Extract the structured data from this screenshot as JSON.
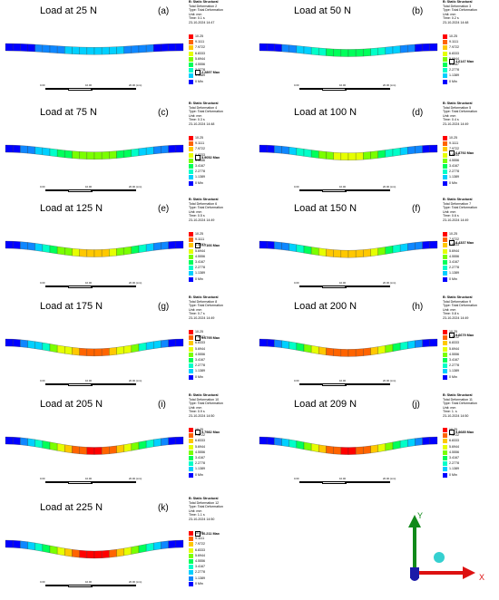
{
  "colors": [
    "#0000ff",
    "#0f87ff",
    "#00d0ff",
    "#00ffc8",
    "#00ff5a",
    "#7aff00",
    "#e6ff00",
    "#ffc800",
    "#ff6400",
    "#ff0000"
  ],
  "panels": [
    {
      "title": "Load at 25 N",
      "label": "(a)",
      "header": "B: Static Structural",
      "line1": "Total Deformation 2",
      "type": "Type: Total Deformation",
      "unit": "Unit: mm",
      "time": "Time: 0.1 s",
      "date": "23-10-2024 14:47",
      "legend": [
        {
          "v": "10.25"
        },
        {
          "v": "9.1111"
        },
        {
          "v": "7.9722"
        },
        {
          "v": "6.8333"
        },
        {
          "v": "5.6944"
        },
        {
          "v": "4.5556"
        },
        {
          "v": "2.2778"
        },
        {
          "v": "1.1389"
        },
        {
          "v": "0 Min"
        }
      ],
      "max_label": "2.2897 Max",
      "max_value": 2.2897,
      "scale": [
        "0.00",
        "10.00",
        "20.00 (mm)"
      ]
    },
    {
      "title": "Load at 50 N",
      "label": "(b)",
      "header": "B: Static Structural",
      "line1": "Total Deformation 3",
      "type": "Type: Total Deformation",
      "unit": "Unit: mm",
      "time": "Time: 0.2 s",
      "date": "23-10-2024 14:48",
      "legend": [
        {
          "v": "10.25"
        },
        {
          "v": "9.1111"
        },
        {
          "v": "7.9722"
        },
        {
          "v": "6.8333"
        },
        {
          "v": "5.6944"
        },
        {
          "v": "3.4167"
        },
        {
          "v": "2.2778"
        },
        {
          "v": "1.1389"
        },
        {
          "v": "0 Min"
        }
      ],
      "max_label": "4.6147 Max",
      "max_value": 4.6147,
      "scale": [
        "0.00",
        "10.00",
        "20.00 (mm)"
      ]
    },
    {
      "title": "Load at 75 N",
      "label": "(c)",
      "header": "B: Static Structural",
      "line1": "Total Deformation 4",
      "type": "Type: Total Deformation",
      "unit": "Unit: mm",
      "time": "Time: 0.3 s",
      "date": "23-10-2024 14:48",
      "legend": [
        {
          "v": "10.25"
        },
        {
          "v": "9.1111"
        },
        {
          "v": "7.9722"
        },
        {
          "v": "6.8333"
        },
        {
          "v": "4.5556"
        },
        {
          "v": "3.4167"
        },
        {
          "v": "2.2778"
        },
        {
          "v": "1.1389"
        },
        {
          "v": "0 Min"
        }
      ],
      "max_label": "5.9052 Max",
      "max_value": 5.9052,
      "scale": [
        "0.00",
        "10.00",
        "20.00 (mm)"
      ]
    },
    {
      "title": "Load at 100 N",
      "label": "(d)",
      "header": "B: Static Structural",
      "line1": "Total Deformation 5",
      "type": "Type: Total Deformation",
      "unit": "Unit: mm",
      "time": "Time: 0.4 s",
      "date": "23-10-2024 14:49",
      "legend": [
        {
          "v": "10.25"
        },
        {
          "v": "9.1111"
        },
        {
          "v": "7.9722"
        },
        {
          "v": "5.6944"
        },
        {
          "v": "4.5556"
        },
        {
          "v": "3.4167"
        },
        {
          "v": "2.2778"
        },
        {
          "v": "1.1389"
        },
        {
          "v": "0 Min"
        }
      ],
      "max_label": "6.8792 Max",
      "max_value": 6.8792,
      "scale": [
        "0.00",
        "10.00",
        "20.00 (mm)"
      ]
    },
    {
      "title": "Load at 125 N",
      "label": "(e)",
      "header": "B: Static Structural",
      "line1": "Total Deformation 6",
      "type": "Type: Total Deformation",
      "unit": "Unit: mm",
      "time": "Time: 0.5 s",
      "date": "23-10-2024 14:49",
      "legend": [
        {
          "v": "10.25"
        },
        {
          "v": "9.1111"
        },
        {
          "v": "6.8333"
        },
        {
          "v": "5.6944"
        },
        {
          "v": "4.5556"
        },
        {
          "v": "3.4167"
        },
        {
          "v": "2.2778"
        },
        {
          "v": "1.1389"
        },
        {
          "v": "0 Min"
        }
      ],
      "max_label": "7.7166 Max",
      "max_value": 7.7166,
      "scale": [
        "0.00",
        "10.00",
        "20.00 (mm)"
      ]
    },
    {
      "title": "Load at 150 N",
      "label": "(f)",
      "header": "B: Static Structural",
      "line1": "Total Deformation 7",
      "type": "Type: Total Deformation",
      "unit": "Unit: mm",
      "time": "Time: 0.6 s",
      "date": "23-10-2024 14:49",
      "legend": [
        {
          "v": "10.25"
        },
        {
          "v": "7.9722"
        },
        {
          "v": "6.8333"
        },
        {
          "v": "5.6944"
        },
        {
          "v": "4.5556"
        },
        {
          "v": "3.4167"
        },
        {
          "v": "2.2778"
        },
        {
          "v": "1.1389"
        },
        {
          "v": "0 Min"
        }
      ],
      "max_label": "8.4337 Max",
      "max_value": 8.4337,
      "scale": [
        "0.00",
        "10.00",
        "20.00 (mm)"
      ]
    },
    {
      "title": "Load at 175 N",
      "label": "(g)",
      "header": "B: Static Structural",
      "line1": "Total Deformation 8",
      "type": "Type: Total Deformation",
      "unit": "Unit: mm",
      "time": "Time: 0.7 s",
      "date": "23-10-2024 14:49",
      "legend": [
        {
          "v": "10.25"
        },
        {
          "v": "7.9722"
        },
        {
          "v": "6.8333"
        },
        {
          "v": "5.6944"
        },
        {
          "v": "4.5556"
        },
        {
          "v": "3.4167"
        },
        {
          "v": "2.2778"
        },
        {
          "v": "1.1389"
        },
        {
          "v": "0 Min"
        }
      ],
      "max_label": "9.0795 Max",
      "max_value": 9.0795,
      "scale": [
        "0.00",
        "10.00",
        "20.00 (mm)"
      ]
    },
    {
      "title": "Load at 200 N",
      "label": "(h)",
      "header": "B: Static Structural",
      "line1": "Total Deformation 9",
      "type": "Type: Total Deformation",
      "unit": "Unit: mm",
      "time": "Time: 0.8 s",
      "date": "23-10-2024 14:49",
      "legend": [
        {
          "v": "10.25"
        },
        {
          "v": "7.9722"
        },
        {
          "v": "6.8333"
        },
        {
          "v": "5.6944"
        },
        {
          "v": "4.5556"
        },
        {
          "v": "3.4167"
        },
        {
          "v": "2.2778"
        },
        {
          "v": "1.1389"
        },
        {
          "v": "0 Min"
        }
      ],
      "max_label": "9.6679 Max",
      "max_value": 9.6679,
      "scale": [
        "0.00",
        "10.00",
        "20.00 (mm)"
      ]
    },
    {
      "title": "Load at 205 N",
      "label": "(i)",
      "header": "B: Static Structural",
      "line1": "Total Deformation 10",
      "type": "Type: Total Deformation",
      "unit": "Unit: mm",
      "time": "Time: 0.9 s",
      "date": "23-10-2024 14:50",
      "legend": [
        {
          "v": "10.25"
        },
        {
          "v": "7.9722"
        },
        {
          "v": "6.8333"
        },
        {
          "v": "5.6944"
        },
        {
          "v": "4.5556"
        },
        {
          "v": "3.4167"
        },
        {
          "v": "2.2778"
        },
        {
          "v": "1.1389"
        },
        {
          "v": "0 Min"
        }
      ],
      "max_label": "9.7982 Max",
      "max_value": 9.7982,
      "scale": [
        "0.00",
        "10.00",
        "20.00 (mm)"
      ]
    },
    {
      "title": "Load at 209 N",
      "label": "(j)",
      "header": "B: Static Structural",
      "line1": "Total Deformation 11",
      "type": "Type: Total Deformation",
      "unit": "Unit: mm",
      "time": "Time: 1. s",
      "date": "23-10-2024 14:50",
      "legend": [
        {
          "v": "10.25"
        },
        {
          "v": "7.9722"
        },
        {
          "v": "6.8333"
        },
        {
          "v": "5.6944"
        },
        {
          "v": "4.5556"
        },
        {
          "v": "3.4167"
        },
        {
          "v": "2.2778"
        },
        {
          "v": "1.1389"
        },
        {
          "v": "0 Min"
        }
      ],
      "max_label": "9.8685 Max",
      "max_value": 9.8685,
      "scale": [
        "0.00",
        "10.00",
        "20.00 (mm)"
      ]
    },
    {
      "title": "Load at 225 N",
      "label": "(k)",
      "header": "B: Static Structural",
      "line1": "Total Deformation 12",
      "type": "Type: Total Deformation",
      "unit": "Unit: mm",
      "time": "Time: 1.1 s",
      "date": "23-10-2024 14:50",
      "legend": [
        {
          "v": "10.25"
        },
        {
          "v": "9.1111"
        },
        {
          "v": "7.9722"
        },
        {
          "v": "6.8333"
        },
        {
          "v": "5.6944"
        },
        {
          "v": "4.5556"
        },
        {
          "v": "3.4167"
        },
        {
          "v": "2.2778"
        },
        {
          "v": "1.1389"
        },
        {
          "v": "0 Min"
        }
      ],
      "max_label": "10.211 Max",
      "max_value": 10.211,
      "scale": [
        "0.00",
        "10.00",
        "20.00 (mm)"
      ]
    }
  ],
  "triad": {
    "y": "Y",
    "x": "X"
  }
}
